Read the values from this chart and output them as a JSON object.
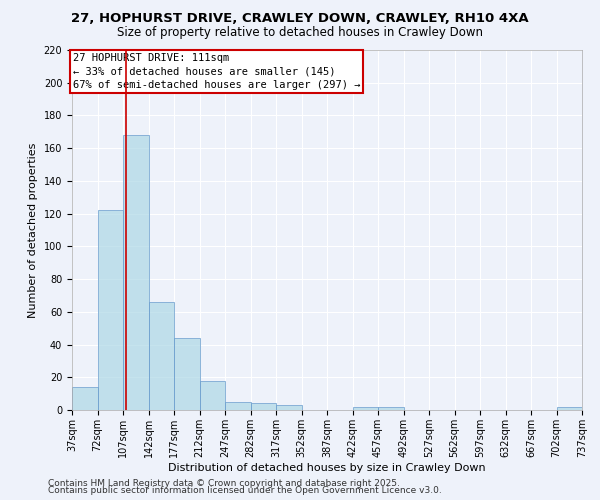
{
  "title_line1": "27, HOPHURST DRIVE, CRAWLEY DOWN, CRAWLEY, RH10 4XA",
  "title_line2": "Size of property relative to detached houses in Crawley Down",
  "xlabel": "Distribution of detached houses by size in Crawley Down",
  "ylabel": "Number of detached properties",
  "bin_edges": [
    37,
    72,
    107,
    142,
    177,
    212,
    247,
    282,
    317,
    352,
    387,
    422,
    457,
    492,
    527,
    562,
    597,
    632,
    667,
    702,
    737
  ],
  "bar_heights": [
    14,
    122,
    168,
    66,
    44,
    18,
    5,
    4,
    3,
    0,
    0,
    2,
    2,
    0,
    0,
    0,
    0,
    0,
    0,
    2
  ],
  "bar_color": "#add8e6",
  "bar_edge_color": "#6699cc",
  "bar_alpha": 0.7,
  "property_size": 111,
  "red_line_color": "#cc0000",
  "annotation_text": "27 HOPHURST DRIVE: 111sqm\n← 33% of detached houses are smaller (145)\n67% of semi-detached houses are larger (297) →",
  "annotation_box_color": "#ffffff",
  "annotation_box_edge_color": "#cc0000",
  "ylim": [
    0,
    220
  ],
  "yticks": [
    0,
    20,
    40,
    60,
    80,
    100,
    120,
    140,
    160,
    180,
    200,
    220
  ],
  "background_color": "#eef2fa",
  "grid_color": "#ffffff",
  "footer_line1": "Contains HM Land Registry data © Crown copyright and database right 2025.",
  "footer_line2": "Contains public sector information licensed under the Open Government Licence v3.0.",
  "title_fontsize": 9.5,
  "subtitle_fontsize": 8.5,
  "axis_label_fontsize": 8,
  "tick_fontsize": 7,
  "annotation_fontsize": 7.5,
  "footer_fontsize": 6.5
}
